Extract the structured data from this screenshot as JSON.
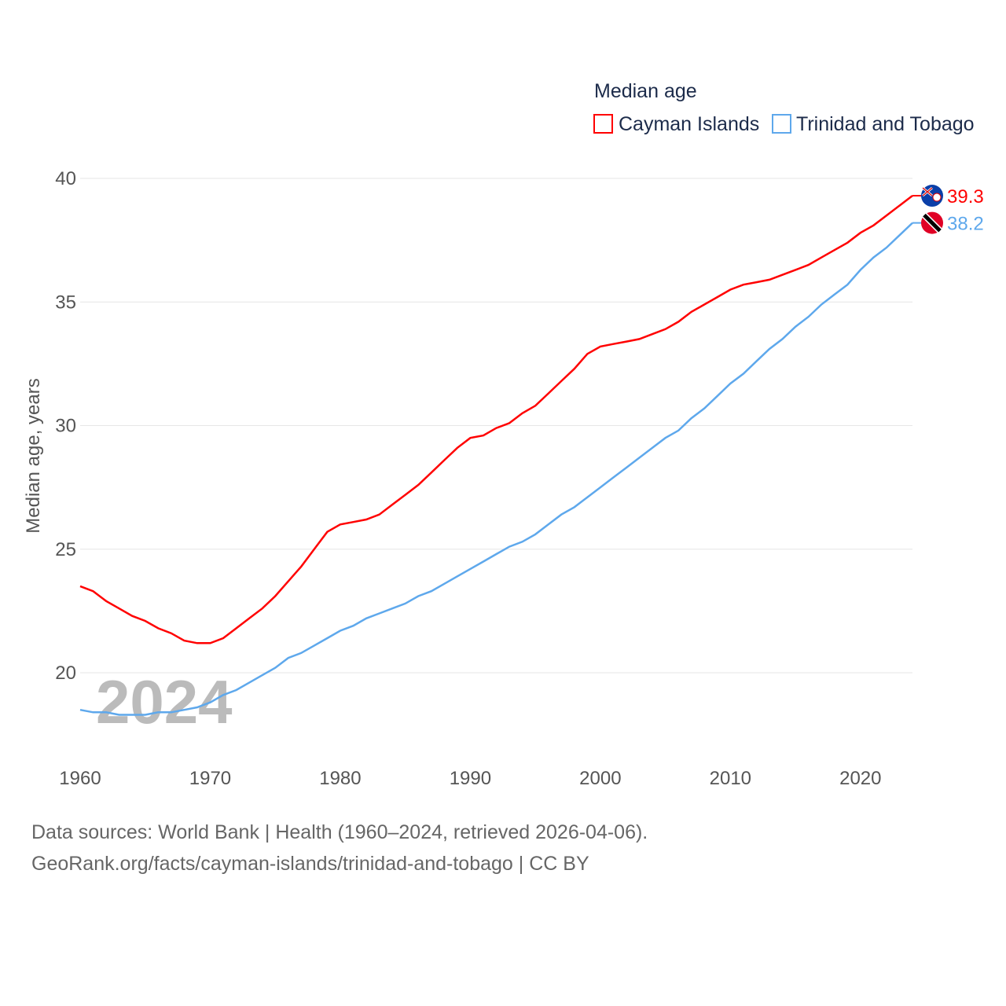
{
  "chart_data": {
    "type": "line",
    "legend_title": "Median age",
    "legend_position": "top-right",
    "ylabel": "Median age, years",
    "xlabel": "",
    "ylim": [
      17,
      40.5
    ],
    "xlim": [
      1960,
      2024
    ],
    "yticks": [
      20,
      25,
      30,
      35,
      40
    ],
    "xticks": [
      1960,
      1970,
      1980,
      1990,
      2000,
      2010,
      2020
    ],
    "grid": true,
    "year_watermark": "2024",
    "x": [
      1960,
      1961,
      1962,
      1963,
      1964,
      1965,
      1966,
      1967,
      1968,
      1969,
      1970,
      1971,
      1972,
      1973,
      1974,
      1975,
      1976,
      1977,
      1978,
      1979,
      1980,
      1981,
      1982,
      1983,
      1984,
      1985,
      1986,
      1987,
      1988,
      1989,
      1990,
      1991,
      1992,
      1993,
      1994,
      1995,
      1996,
      1997,
      1998,
      1999,
      2000,
      2001,
      2002,
      2003,
      2004,
      2005,
      2006,
      2007,
      2008,
      2009,
      2010,
      2011,
      2012,
      2013,
      2014,
      2015,
      2016,
      2017,
      2018,
      2019,
      2020,
      2021,
      2022,
      2023,
      2024
    ],
    "series": [
      {
        "name": "Cayman Islands",
        "color": "#ff0000",
        "end_label": "39.3",
        "values": [
          23.5,
          23.3,
          22.9,
          22.6,
          22.3,
          22.1,
          21.8,
          21.6,
          21.3,
          21.2,
          21.2,
          21.4,
          21.8,
          22.2,
          22.6,
          23.1,
          23.7,
          24.3,
          25.0,
          25.7,
          26.0,
          26.1,
          26.2,
          26.4,
          26.8,
          27.2,
          27.6,
          28.1,
          28.6,
          29.1,
          29.5,
          29.6,
          29.9,
          30.1,
          30.5,
          30.8,
          31.3,
          31.8,
          32.3,
          32.9,
          33.2,
          33.3,
          33.4,
          33.5,
          33.7,
          33.9,
          34.2,
          34.6,
          34.9,
          35.2,
          35.5,
          35.7,
          35.8,
          35.9,
          36.1,
          36.3,
          36.5,
          36.8,
          37.1,
          37.4,
          37.8,
          38.1,
          38.5,
          38.9,
          39.3
        ]
      },
      {
        "name": "Trinidad and Tobago",
        "color": "#5ea8ec",
        "end_label": "38.2",
        "values": [
          18.5,
          18.4,
          18.4,
          18.3,
          18.3,
          18.3,
          18.4,
          18.4,
          18.5,
          18.6,
          18.8,
          19.1,
          19.3,
          19.6,
          19.9,
          20.2,
          20.6,
          20.8,
          21.1,
          21.4,
          21.7,
          21.9,
          22.2,
          22.4,
          22.6,
          22.8,
          23.1,
          23.3,
          23.6,
          23.9,
          24.2,
          24.5,
          24.8,
          25.1,
          25.3,
          25.6,
          26.0,
          26.4,
          26.7,
          27.1,
          27.5,
          27.9,
          28.3,
          28.7,
          29.1,
          29.5,
          29.8,
          30.3,
          30.7,
          31.2,
          31.7,
          32.1,
          32.6,
          33.1,
          33.5,
          34.0,
          34.4,
          34.9,
          35.3,
          35.7,
          36.3,
          36.8,
          37.2,
          37.7,
          38.2
        ]
      }
    ]
  },
  "footer": {
    "line1": "Data sources: World Bank | Health (1960–2024, retrieved 2026-04-06).",
    "line2": "GeoRank.org/facts/cayman-islands/trinidad-and-tobago | CC BY"
  }
}
